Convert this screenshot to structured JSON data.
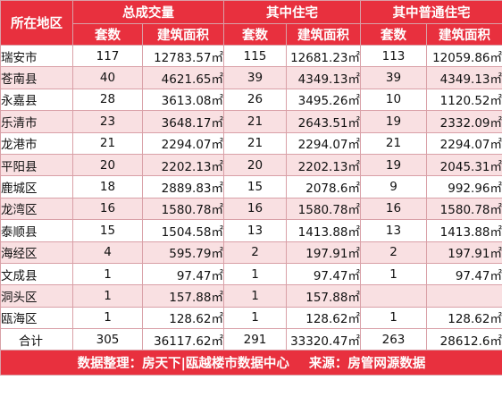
{
  "header": {
    "region_label": "所在地区",
    "groups": [
      "总成交量",
      "其中住宅",
      "其中普通住宅"
    ],
    "sub": [
      "套数",
      "建筑面积",
      "套数",
      "建筑面积",
      "套数",
      "建筑面积"
    ]
  },
  "rows": [
    {
      "region": "瑞安市",
      "c1": "117",
      "a1": "12783.57㎡",
      "c2": "115",
      "a2": "12681.23㎡",
      "c3": "113",
      "a3": "12059.86㎡"
    },
    {
      "region": "苍南县",
      "c1": "40",
      "a1": "4621.65㎡",
      "c2": "39",
      "a2": "4349.13㎡",
      "c3": "39",
      "a3": "4349.13㎡"
    },
    {
      "region": "永嘉县",
      "c1": "28",
      "a1": "3613.08㎡",
      "c2": "26",
      "a2": "3495.26㎡",
      "c3": "10",
      "a3": "1120.52㎡"
    },
    {
      "region": "乐清市",
      "c1": "23",
      "a1": "3648.17㎡",
      "c2": "21",
      "a2": "2643.51㎡",
      "c3": "19",
      "a3": "2332.09㎡"
    },
    {
      "region": "龙港市",
      "c1": "21",
      "a1": "2294.07㎡",
      "c2": "21",
      "a2": "2294.07㎡",
      "c3": "21",
      "a3": "2294.07㎡"
    },
    {
      "region": "平阳县",
      "c1": "20",
      "a1": "2202.13㎡",
      "c2": "20",
      "a2": "2202.13㎡",
      "c3": "19",
      "a3": "2045.31㎡"
    },
    {
      "region": "鹿城区",
      "c1": "18",
      "a1": "2889.83㎡",
      "c2": "15",
      "a2": "2078.6㎡",
      "c3": "9",
      "a3": "992.96㎡"
    },
    {
      "region": "龙湾区",
      "c1": "16",
      "a1": "1580.78㎡",
      "c2": "16",
      "a2": "1580.78㎡",
      "c3": "16",
      "a3": "1580.78㎡"
    },
    {
      "region": "泰顺县",
      "c1": "15",
      "a1": "1504.58㎡",
      "c2": "13",
      "a2": "1413.88㎡",
      "c3": "13",
      "a3": "1413.88㎡"
    },
    {
      "region": "海经区",
      "c1": "4",
      "a1": "595.79㎡",
      "c2": "2",
      "a2": "197.91㎡",
      "c3": "2",
      "a3": "197.91㎡"
    },
    {
      "region": "文成县",
      "c1": "1",
      "a1": "97.47㎡",
      "c2": "1",
      "a2": "97.47㎡",
      "c3": "1",
      "a3": "97.47㎡"
    },
    {
      "region": "洞头区",
      "c1": "1",
      "a1": "157.88㎡",
      "c2": "1",
      "a2": "157.88㎡",
      "c3": "",
      "a3": ""
    },
    {
      "region": "瓯海区",
      "c1": "1",
      "a1": "128.62㎡",
      "c2": "1",
      "a2": "128.62㎡",
      "c3": "1",
      "a3": "128.62㎡"
    }
  ],
  "total": {
    "region": "合计",
    "c1": "305",
    "a1": "36117.62㎡",
    "c2": "291",
    "a2": "33320.47㎡",
    "c3": "263",
    "a3": "28612.6㎡"
  },
  "footer": {
    "left": "数据整理：房天下|瓯越楼市数据中心",
    "right": "来源：房管网源数据"
  },
  "colors": {
    "header_bg": "#e8303e",
    "alt_row_bg": "#f9e0e2",
    "border": "#d9a0a7"
  }
}
